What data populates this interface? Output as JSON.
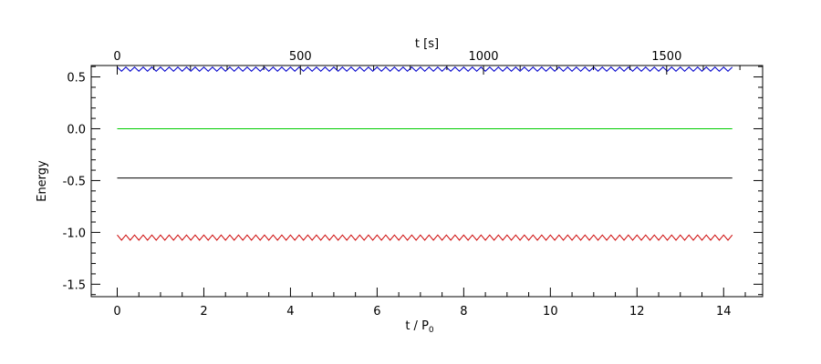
{
  "chart_data": {
    "type": "line",
    "title": "",
    "xlabel": "t / P",
    "xlabel_sub": "0",
    "ylabel": "Energy",
    "top_xlabel": "t [s]",
    "xlim": [
      -0.6,
      14.9
    ],
    "ylim": [
      -1.62,
      0.61
    ],
    "top_xlim": [
      -71,
      1762
    ],
    "x_ticks": [
      0,
      2,
      4,
      6,
      8,
      10,
      12,
      14
    ],
    "y_ticks": [
      0.5,
      0.0,
      -0.5,
      -1.0,
      -1.5
    ],
    "y_tick_labels": [
      "0.5",
      "0.0",
      "-0.5",
      "-1.0",
      "-1.5"
    ],
    "top_x_ticks": [
      0,
      500,
      1000,
      1500
    ],
    "grid": false,
    "series": [
      {
        "color": "#0000cc",
        "x_range": [
          0,
          14.2
        ],
        "mean": 0.575,
        "amplitude": 0.02,
        "cycles": 71
      },
      {
        "color": "#00cc00",
        "x_range": [
          0,
          14.2
        ],
        "mean": 0.0,
        "amplitude": 0.0,
        "cycles": 0
      },
      {
        "color": "#000000",
        "x_range": [
          0,
          14.2
        ],
        "mean": -0.475,
        "amplitude": 0.0,
        "cycles": 0
      },
      {
        "color": "#cc0000",
        "x_range": [
          0,
          14.2
        ],
        "mean": -1.05,
        "amplitude": 0.025,
        "cycles": 71
      }
    ]
  }
}
